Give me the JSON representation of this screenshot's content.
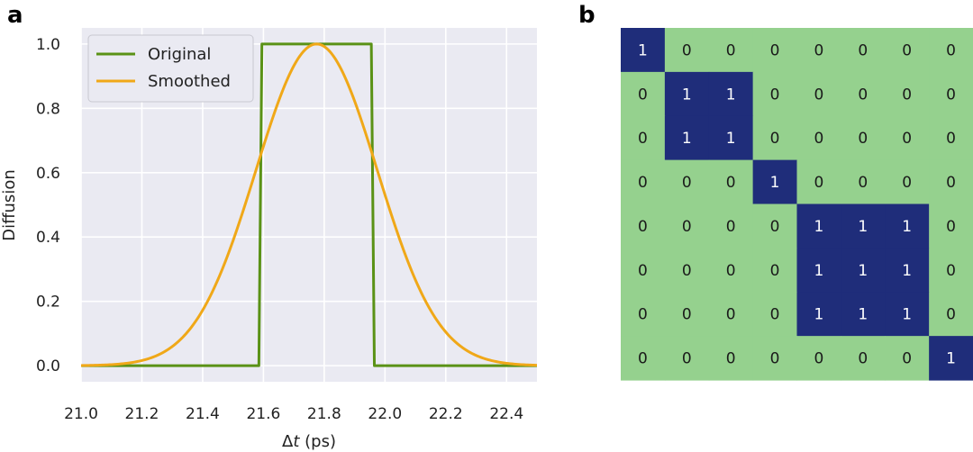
{
  "panels": {
    "a": "a",
    "b": "b"
  },
  "chart_data": [
    {
      "type": "line",
      "panel": "a",
      "xlabel_prefix": "Δ",
      "xlabel_var": "t",
      "xlabel_suffix": " (ps)",
      "ylabel": "Diffusion",
      "xlim": [
        21.0,
        22.5
      ],
      "ylim": [
        -0.05,
        1.05
      ],
      "xticks": [
        "21.0",
        "21.2",
        "21.4",
        "21.6",
        "21.8",
        "22.0",
        "22.2",
        "22.4"
      ],
      "xtick_values": [
        21.0,
        21.2,
        21.4,
        21.6,
        21.8,
        22.0,
        22.2,
        22.4
      ],
      "yticks": [
        "0.0",
        "0.2",
        "0.4",
        "0.6",
        "0.8",
        "1.0"
      ],
      "ytick_values": [
        0.0,
        0.2,
        0.4,
        0.6,
        0.8,
        1.0
      ],
      "grid": true,
      "legend_position": "top-left",
      "series": [
        {
          "name": "Original",
          "color": "#5a9216",
          "x": [
            21.0,
            21.585,
            21.595,
            21.955,
            21.965,
            22.5
          ],
          "y": [
            0.0,
            0.0,
            1.0,
            1.0,
            0.0,
            0.0
          ]
        },
        {
          "name": "Smoothed",
          "color": "#f0a818",
          "gaussian": {
            "center": 21.775,
            "sigma": 0.2,
            "peak": 1.0
          }
        }
      ]
    },
    {
      "type": "heatmap",
      "panel": "b",
      "on_color": "#1f2d7a",
      "off_color": "#95d18e",
      "on_text_color": "#ffffff",
      "off_text_color": "#1a1a1a",
      "matrix": [
        [
          1,
          0,
          0,
          0,
          0,
          0,
          0,
          0
        ],
        [
          0,
          1,
          1,
          0,
          0,
          0,
          0,
          0
        ],
        [
          0,
          1,
          1,
          0,
          0,
          0,
          0,
          0
        ],
        [
          0,
          0,
          0,
          1,
          0,
          0,
          0,
          0
        ],
        [
          0,
          0,
          0,
          0,
          1,
          1,
          1,
          0
        ],
        [
          0,
          0,
          0,
          0,
          1,
          1,
          1,
          0
        ],
        [
          0,
          0,
          0,
          0,
          1,
          1,
          1,
          0
        ],
        [
          0,
          0,
          0,
          0,
          0,
          0,
          0,
          1
        ]
      ]
    }
  ]
}
